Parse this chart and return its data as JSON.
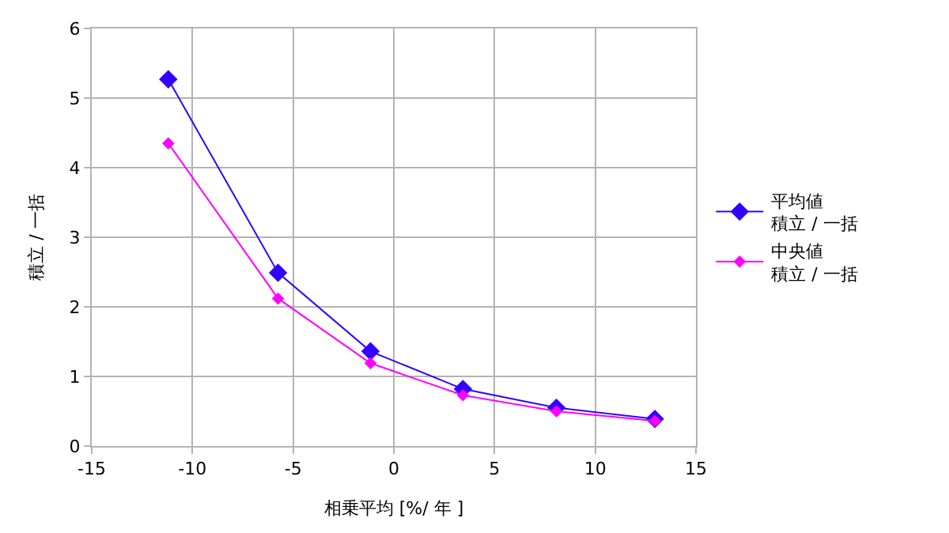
{
  "chart_data": {
    "type": "line",
    "xlabel": "相乗平均 [%/ 年 ]",
    "ylabel": "積立 / 一括",
    "x": [
      -11.2,
      -5.75,
      -1.16,
      3.43,
      8.07,
      12.96
    ],
    "series": [
      {
        "name": "平均値積立 / 一括",
        "color": "#3300ff",
        "values": [
          5.27,
          2.49,
          1.36,
          0.82,
          0.55,
          0.39
        ]
      },
      {
        "name": "中央値積立 / 一括",
        "color": "#ff00ff",
        "values": [
          4.35,
          2.12,
          1.19,
          0.73,
          0.5,
          0.36
        ]
      }
    ],
    "xlim": [
      -15,
      15
    ],
    "xticks": [
      -15,
      -10,
      -5,
      0,
      5,
      10,
      15
    ],
    "ylim": [
      0,
      6
    ],
    "yticks": [
      0,
      1,
      2,
      3,
      4,
      5,
      6
    ],
    "grid": true,
    "legend": "right",
    "marker": "diamond",
    "line_style": "solid"
  }
}
